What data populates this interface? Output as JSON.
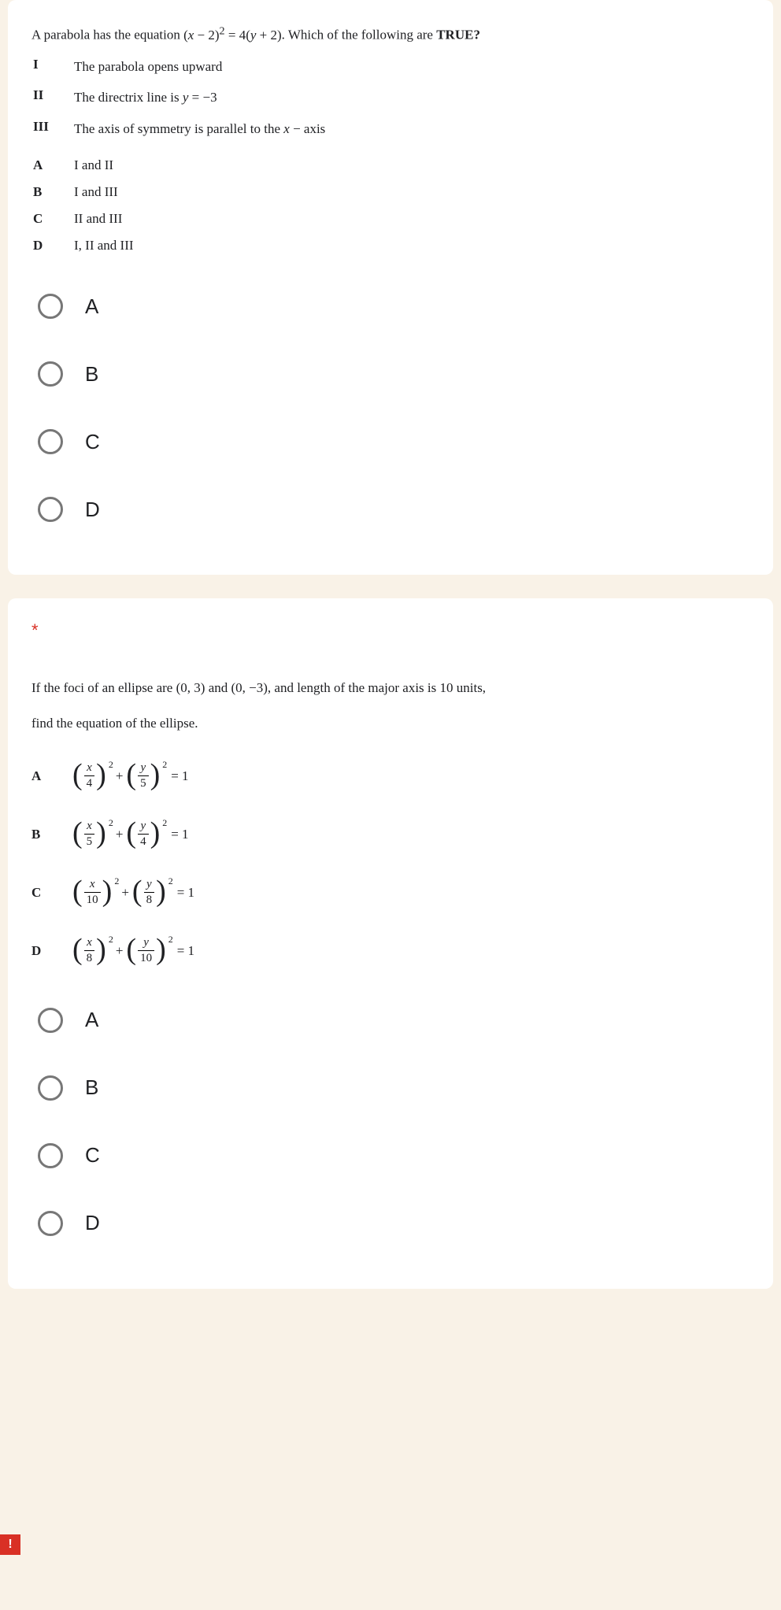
{
  "q1": {
    "prompt_pre": "A parabola has the equation ",
    "prompt_eq": "(x − 2)² = 4(y + 2)",
    "prompt_post": ". Which of the following are ",
    "prompt_bold": "TRUE?",
    "statements": [
      {
        "label": "I",
        "text": "The parabola opens upward"
      },
      {
        "label": "II",
        "text_pre": "The directrix line is ",
        "text_math": "y = −3"
      },
      {
        "label": "III",
        "text_pre": "The axis of symmetry is parallel to the ",
        "text_math": "x − axis"
      }
    ],
    "answers": [
      {
        "label": "A",
        "text": "I and II"
      },
      {
        "label": "B",
        "text": "I and III"
      },
      {
        "label": "C",
        "text": "II and III"
      },
      {
        "label": "D",
        "text": "I, II and III"
      }
    ],
    "radios": [
      "A",
      "B",
      "C",
      "D"
    ]
  },
  "q2": {
    "required_mark": "*",
    "body_1": "If the foci of an ellipse are ",
    "coord1": "(0, 3)",
    "body_2": " and ",
    "coord2": "(0, −3)",
    "body_3": ", and length of the major axis is 10 units,",
    "body_4": "find the equation of the ellipse.",
    "options": [
      {
        "label": "A",
        "xden": "4",
        "yden": "5"
      },
      {
        "label": "B",
        "xden": "5",
        "yden": "4"
      },
      {
        "label": "C",
        "xden": "10",
        "yden": "8"
      },
      {
        "label": "D",
        "xden": "8",
        "yden": "10"
      }
    ],
    "xvar": "x",
    "yvar": "y",
    "eq_rhs": "= 1",
    "plus": "+",
    "radios": [
      "A",
      "B",
      "C",
      "D"
    ]
  },
  "alert_badge": "!",
  "colors": {
    "page_bg": "#f9f2e7",
    "card_bg": "#ffffff",
    "text": "#202124",
    "required": "#d93025",
    "radio_border": "#777777"
  }
}
